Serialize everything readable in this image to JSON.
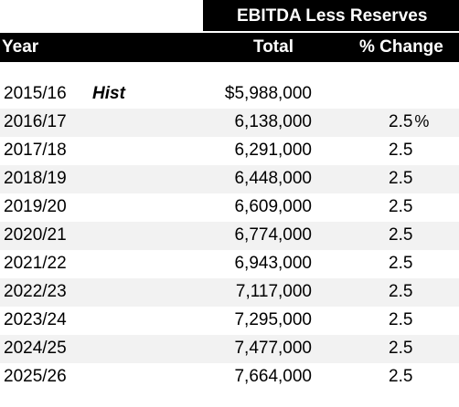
{
  "header": {
    "group_title": "EBITDA Less Reserves",
    "col_year": "Year",
    "col_total": "Total",
    "col_change": "% Change"
  },
  "rows": [
    {
      "year": "2015/16",
      "note": "Hist",
      "total": "$5,988,000",
      "change": "",
      "pct": ""
    },
    {
      "year": "2016/17",
      "note": "",
      "total": "6,138,000",
      "change": "2.5",
      "pct": "%"
    },
    {
      "year": "2017/18",
      "note": "",
      "total": "6,291,000",
      "change": "2.5",
      "pct": ""
    },
    {
      "year": "2018/19",
      "note": "",
      "total": "6,448,000",
      "change": "2.5",
      "pct": ""
    },
    {
      "year": "2019/20",
      "note": "",
      "total": "6,609,000",
      "change": "2.5",
      "pct": ""
    },
    {
      "year": "2020/21",
      "note": "",
      "total": "6,774,000",
      "change": "2.5",
      "pct": ""
    },
    {
      "year": "2021/22",
      "note": "",
      "total": "6,943,000",
      "change": "2.5",
      "pct": ""
    },
    {
      "year": "2022/23",
      "note": "",
      "total": "7,117,000",
      "change": "2.5",
      "pct": ""
    },
    {
      "year": "2023/24",
      "note": "",
      "total": "7,295,000",
      "change": "2.5",
      "pct": ""
    },
    {
      "year": "2024/25",
      "note": "",
      "total": "7,477,000",
      "change": "2.5",
      "pct": ""
    },
    {
      "year": "2025/26",
      "note": "",
      "total": "7,664,000",
      "change": "2.5",
      "pct": ""
    }
  ],
  "colors": {
    "header_bg": "#000000",
    "header_text": "#ffffff",
    "row_shade": "#f2f2f2"
  }
}
